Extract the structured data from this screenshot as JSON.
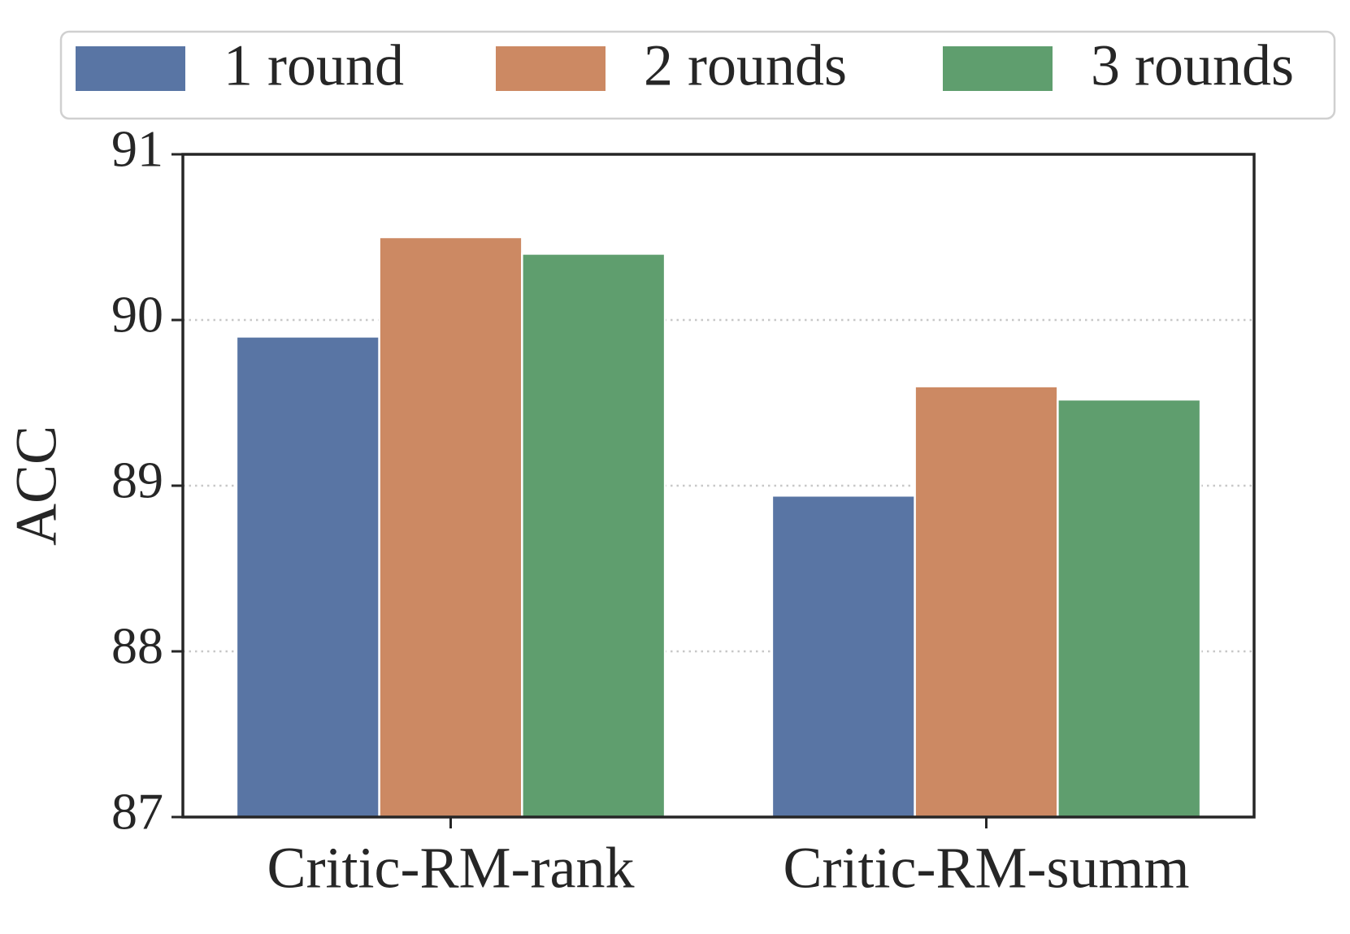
{
  "chart_data": {
    "type": "bar",
    "categories": [
      "Critic-RM-rank",
      "Critic-RM-summ"
    ],
    "series": [
      {
        "name": "1 round",
        "color": "#5975a4",
        "values": [
          89.9,
          88.94
        ]
      },
      {
        "name": "2 rounds",
        "color": "#cc8963",
        "values": [
          90.5,
          89.6
        ]
      },
      {
        "name": "3 rounds",
        "color": "#5f9e6e",
        "values": [
          90.4,
          89.52
        ]
      }
    ],
    "y_label": "ACC",
    "ylim": [
      87,
      91
    ],
    "yticks": [
      87,
      88,
      89,
      90,
      91
    ],
    "grid": true,
    "legend": "top"
  }
}
